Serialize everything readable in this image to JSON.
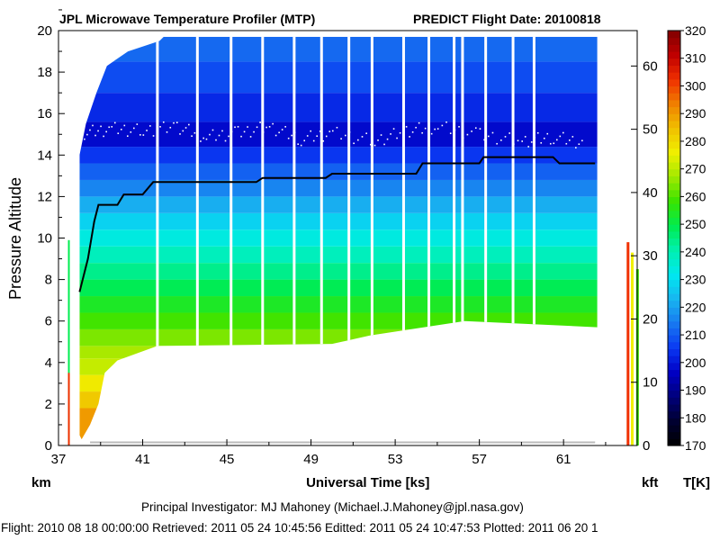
{
  "header": {
    "title_left": "JPL Microwave Temperature Profiler (MTP)",
    "title_right": "PREDICT  Flight Date: 20100818"
  },
  "footer": {
    "investigator": "Principal Investigator: MJ Mahoney (Michael.J.Mahoney@jpl.nasa.gov)",
    "dates": "Flight: 2010 08 18 00:00:00   Retrieved: 2011 05 24 10:45:56   Editted: 2011 05 24 10:47:53   Plotted: 2011 06 20 1"
  },
  "colors": {
    "tropopause_points": "#ffffff",
    "aircraft_altitude": "#000000",
    "surface_trace": "#bbbbbb"
  },
  "chart_data": {
    "type": "heatmap",
    "title": "JPL Microwave Temperature Profiler (MTP)",
    "xlabel": "Universal Time [ks]",
    "ylabel": "Pressure Altitude",
    "y_unit_left": "km",
    "y_unit_right": "kft",
    "colorbar_label": "T[K]",
    "xlim": [
      37,
      64.5
    ],
    "ylim": [
      0,
      20
    ],
    "kft_lim": [
      0,
      65.6
    ],
    "x_ticks": [
      "37",
      "41",
      "45",
      "49",
      "53",
      "57",
      "61"
    ],
    "y_ticks": [
      "0",
      "2",
      "4",
      "6",
      "8",
      "10",
      "12",
      "14",
      "16",
      "18",
      "20"
    ],
    "kft_ticks": [
      "0",
      "10",
      "20",
      "30",
      "40",
      "50",
      "60"
    ],
    "colorbar_ticks": [
      "170",
      "180",
      "190",
      "200",
      "210",
      "220",
      "230",
      "240",
      "250",
      "260",
      "270",
      "280",
      "290",
      "300",
      "310",
      "320"
    ],
    "colorbar_range": [
      170,
      320
    ],
    "colorbar_colors": [
      "#000000",
      "#000030",
      "#00007a",
      "#0000c4",
      "#0a38f2",
      "#1878f0",
      "#18b4f0",
      "#00e8f0",
      "#00f0b0",
      "#00ec50",
      "#38e400",
      "#a0e800",
      "#f0f000",
      "#f0c000",
      "#f08000",
      "#f03000",
      "#c00000",
      "#800000"
    ],
    "temperature_bands": [
      {
        "bottom_km": 0.3,
        "top_km": 1.8,
        "temp_K": 290
      },
      {
        "bottom_km": 1.8,
        "top_km": 2.6,
        "temp_K": 283
      },
      {
        "bottom_km": 2.6,
        "top_km": 3.4,
        "temp_K": 277
      },
      {
        "bottom_km": 3.4,
        "top_km": 4.2,
        "temp_K": 271
      },
      {
        "bottom_km": 4.2,
        "top_km": 4.8,
        "temp_K": 268
      },
      {
        "bottom_km": 4.8,
        "top_km": 5.6,
        "temp_K": 264
      },
      {
        "bottom_km": 5.6,
        "top_km": 6.4,
        "temp_K": 259
      },
      {
        "bottom_km": 6.4,
        "top_km": 7.2,
        "temp_K": 254
      },
      {
        "bottom_km": 7.2,
        "top_km": 8.0,
        "temp_K": 249
      },
      {
        "bottom_km": 8.0,
        "top_km": 8.8,
        "temp_K": 244
      },
      {
        "bottom_km": 8.8,
        "top_km": 9.6,
        "temp_K": 239
      },
      {
        "bottom_km": 9.6,
        "top_km": 10.4,
        "temp_K": 234
      },
      {
        "bottom_km": 10.4,
        "top_km": 11.2,
        "temp_K": 228
      },
      {
        "bottom_km": 11.2,
        "top_km": 12.0,
        "temp_K": 222
      },
      {
        "bottom_km": 12.0,
        "top_km": 12.8,
        "temp_K": 216
      },
      {
        "bottom_km": 12.8,
        "top_km": 13.6,
        "temp_K": 211
      },
      {
        "bottom_km": 13.6,
        "top_km": 14.4,
        "temp_K": 205
      },
      {
        "bottom_km": 14.4,
        "top_km": 15.6,
        "temp_K": 198
      },
      {
        "bottom_km": 15.6,
        "top_km": 17.0,
        "temp_K": 203
      },
      {
        "bottom_km": 17.0,
        "top_km": 18.5,
        "temp_K": 208
      },
      {
        "bottom_km": 18.5,
        "top_km": 19.7,
        "temp_K": 212
      }
    ],
    "data_region_top_km": [
      [
        38.0,
        14.0
      ],
      [
        38.3,
        15.5
      ],
      [
        38.8,
        17.0
      ],
      [
        39.3,
        18.3
      ],
      [
        40.3,
        19.0
      ],
      [
        41.8,
        19.5
      ],
      [
        42.0,
        19.7
      ],
      [
        62.6,
        19.7
      ]
    ],
    "data_region_bottom_km": [
      [
        38.0,
        0.5
      ],
      [
        38.1,
        0.3
      ],
      [
        38.5,
        1.0
      ],
      [
        38.9,
        2.0
      ],
      [
        39.2,
        3.5
      ],
      [
        39.8,
        4.1
      ],
      [
        41.7,
        4.8
      ],
      [
        50.0,
        4.9
      ],
      [
        51.8,
        5.3
      ],
      [
        56.3,
        6.0
      ],
      [
        62.6,
        5.7
      ]
    ],
    "data_gaps_ks": [
      41.7,
      43.6,
      45.2,
      46.7,
      48.2,
      49.5,
      50.8,
      51.9,
      53.4,
      54.6,
      55.8,
      56.2,
      57.3,
      58.6,
      59.6
    ],
    "aircraft_altitude_km": [
      [
        38.0,
        7.4
      ],
      [
        38.4,
        9.0
      ],
      [
        38.7,
        10.8
      ],
      [
        38.9,
        11.6
      ],
      [
        39.8,
        11.6
      ],
      [
        40.1,
        12.1
      ],
      [
        41.0,
        12.1
      ],
      [
        41.5,
        12.7
      ],
      [
        46.4,
        12.7
      ],
      [
        46.7,
        12.9
      ],
      [
        49.7,
        12.9
      ],
      [
        50.0,
        13.1
      ],
      [
        54.0,
        13.1
      ],
      [
        54.3,
        13.6
      ],
      [
        57.0,
        13.6
      ],
      [
        57.2,
        13.9
      ],
      [
        60.5,
        13.9
      ],
      [
        60.8,
        13.6
      ],
      [
        62.5,
        13.6
      ]
    ],
    "tropopause_km": [
      [
        38.2,
        15.1
      ],
      [
        39.5,
        15.3
      ],
      [
        41.0,
        15.2
      ],
      [
        42.6,
        15.4
      ],
      [
        44.0,
        14.9
      ],
      [
        45.5,
        15.1
      ],
      [
        47.0,
        15.4
      ],
      [
        48.5,
        14.8
      ],
      [
        50.0,
        15.1
      ],
      [
        52.0,
        14.7
      ],
      [
        53.5,
        15.2
      ],
      [
        55.0,
        15.4
      ],
      [
        57.0,
        15.0
      ],
      [
        59.0,
        14.7
      ],
      [
        60.5,
        14.9
      ],
      [
        62.0,
        14.6
      ]
    ],
    "surface_trace_km": [
      [
        38.5,
        0.15
      ],
      [
        62.5,
        0.15
      ]
    ]
  }
}
